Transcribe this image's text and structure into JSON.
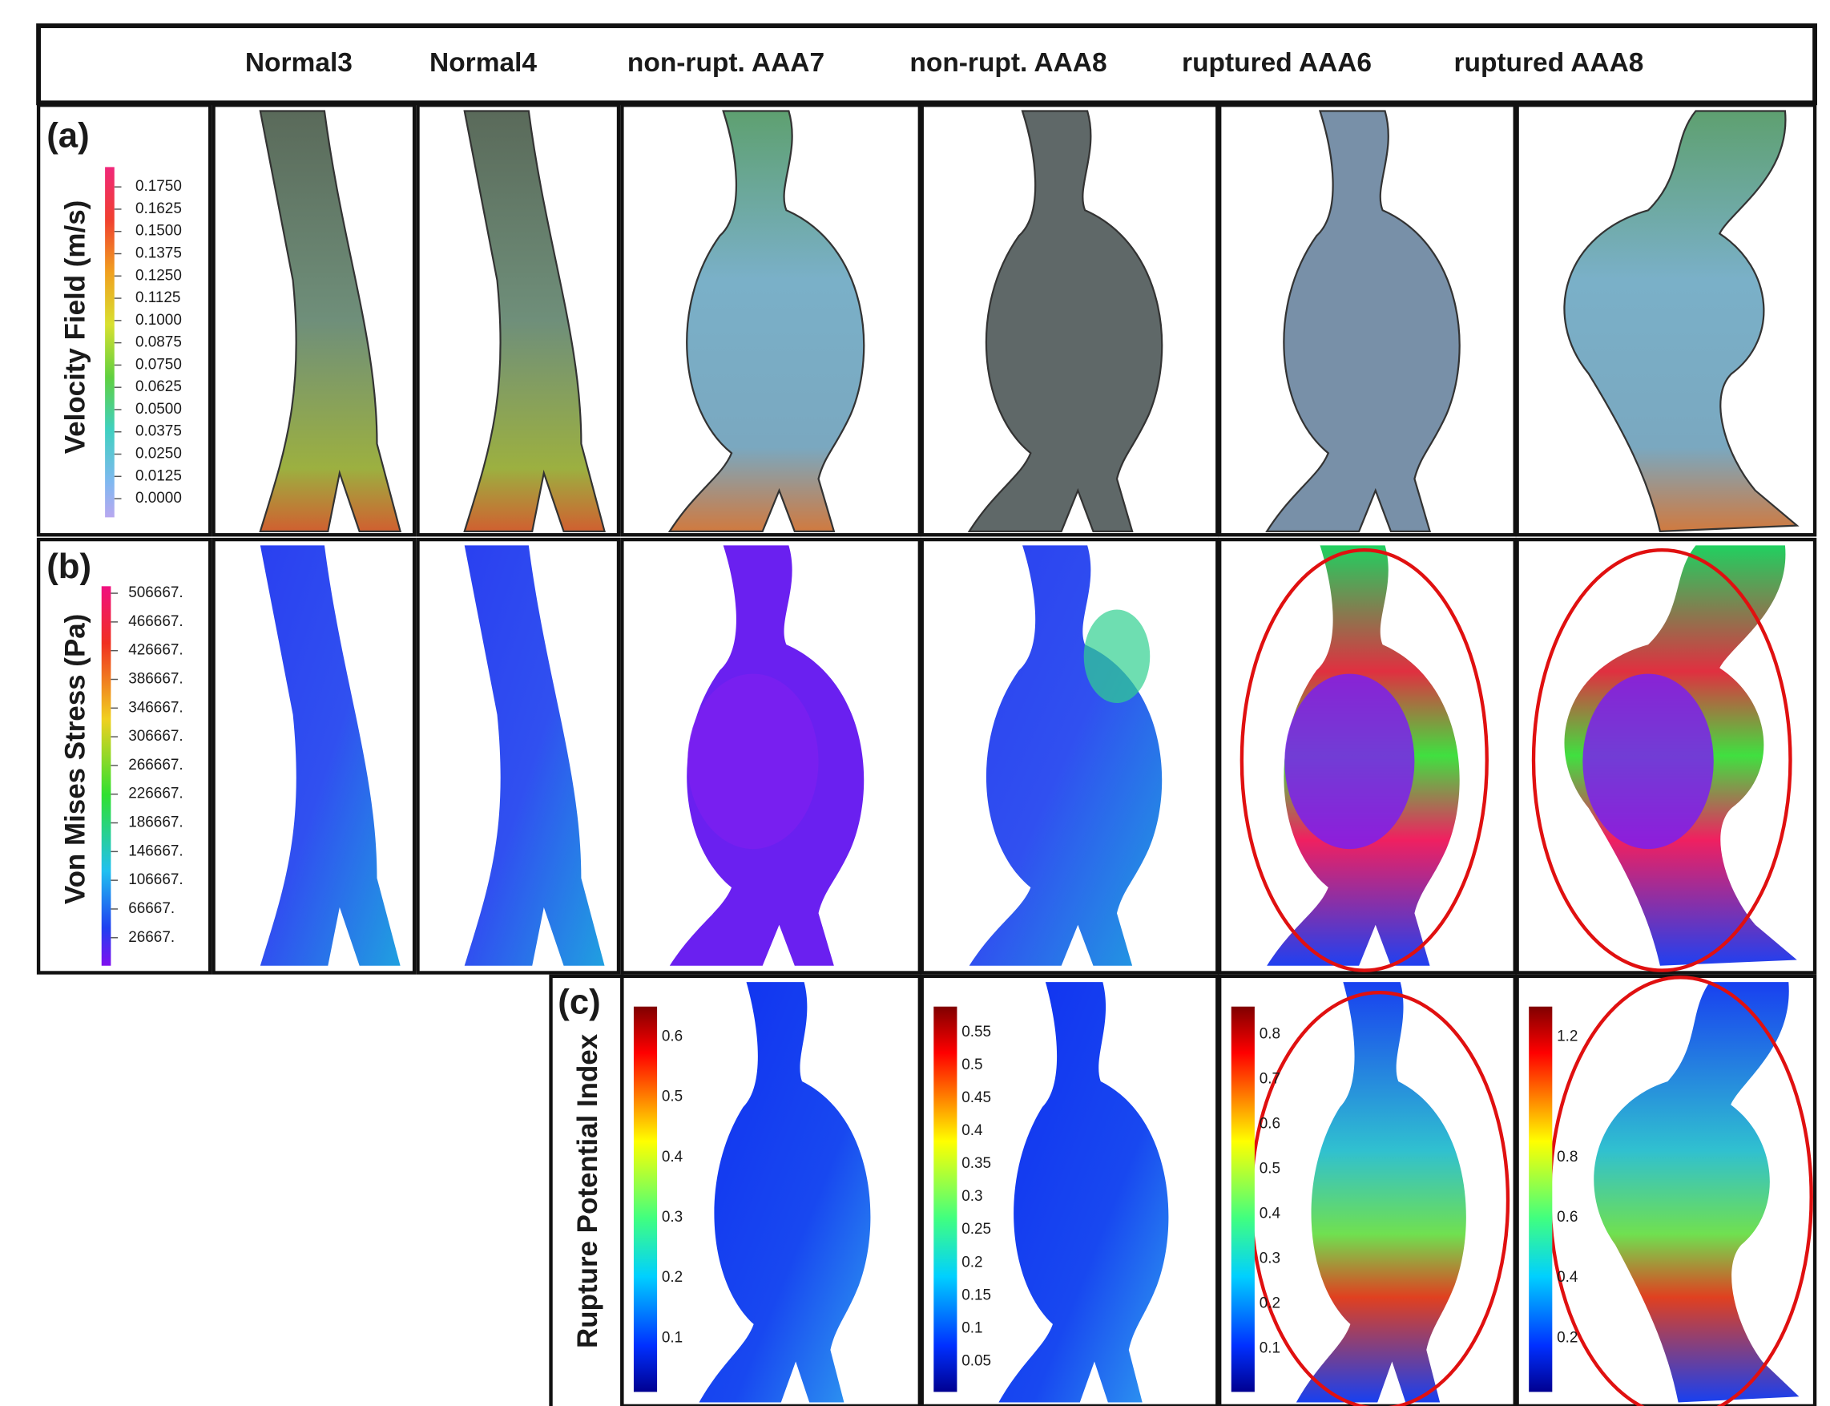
{
  "header": {
    "columns": [
      "Normal3",
      "Normal4",
      "non-rupt. AAA7",
      "non-rupt. AAA8",
      "ruptured AAA6",
      "ruptured AAA8"
    ]
  },
  "rows": [
    {
      "label": "(a)",
      "title": "Velocity Field (m/s)",
      "colorbar": [
        "0.1750",
        "0.1625",
        "0.1500",
        "0.1375",
        "0.1250",
        "0.1125",
        "0.1000",
        "0.0875",
        "0.0750",
        "0.0625",
        "0.0500",
        "0.0375",
        "0.0250",
        "0.0125",
        "0.0000"
      ]
    },
    {
      "label": "(b)",
      "title": "Von Mises Stress (Pa)",
      "colorbar": [
        "506667.",
        "466667.",
        "426667.",
        "386667.",
        "346667.",
        "306667.",
        "266667.",
        "226667.",
        "186667.",
        "146667.",
        "106667.",
        "66667.",
        "26667."
      ]
    },
    {
      "label": "(c)",
      "title": "Rupture Potential Index",
      "colorbars": [
        [
          "0.6",
          "0.5",
          "0.4",
          "0.3",
          "0.2",
          "0.1"
        ],
        [
          "0.55",
          "0.5",
          "0.45",
          "0.4",
          "0.35",
          "0.3",
          "0.25",
          "0.2",
          "0.15",
          "0.1",
          "0.05"
        ],
        [
          "0.8",
          "0.7",
          "0.6",
          "0.5",
          "0.4",
          "0.3",
          "0.2",
          "0.1"
        ],
        [
          "1.2",
          "0.8",
          "0.6",
          "0.4",
          "0.2"
        ]
      ]
    }
  ]
}
